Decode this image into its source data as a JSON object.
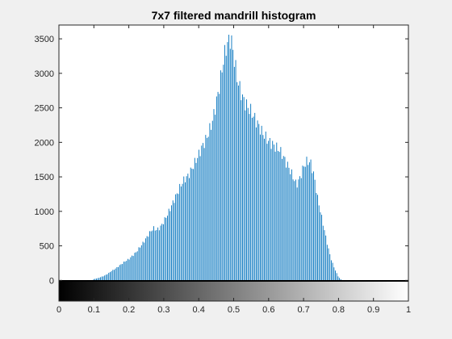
{
  "chart_data": {
    "type": "bar",
    "title": "7x7 filtered mandrill histogram",
    "xlabel": "",
    "ylabel": "",
    "xlim": [
      0,
      1
    ],
    "ylim": [
      -300,
      3700
    ],
    "x_ticks": [
      0,
      0.1,
      0.2,
      0.3,
      0.4,
      0.5,
      0.6,
      0.7,
      0.8,
      0.9,
      1
    ],
    "x_tick_labels": [
      "0",
      "0.1",
      "0.2",
      "0.3",
      "0.4",
      "0.5",
      "0.6",
      "0.7",
      "0.8",
      "0.9",
      "1"
    ],
    "y_ticks": [
      0,
      500,
      1000,
      1500,
      2000,
      2500,
      3000,
      3500
    ],
    "y_tick_labels": [
      "0",
      "500",
      "1000",
      "1500",
      "2000",
      "2500",
      "3000",
      "3500"
    ],
    "bar_color": "#0072bd",
    "colorbar": {
      "range": [
        0,
        1
      ],
      "from_color": "#000000",
      "to_color": "#ffffff"
    },
    "grid": false,
    "profile": [
      [
        0.095,
        0
      ],
      [
        0.1,
        20
      ],
      [
        0.11,
        30
      ],
      [
        0.12,
        50
      ],
      [
        0.13,
        70
      ],
      [
        0.14,
        100
      ],
      [
        0.15,
        140
      ],
      [
        0.16,
        170
      ],
      [
        0.17,
        210
      ],
      [
        0.18,
        250
      ],
      [
        0.19,
        290
      ],
      [
        0.2,
        320
      ],
      [
        0.21,
        370
      ],
      [
        0.22,
        420
      ],
      [
        0.23,
        490
      ],
      [
        0.24,
        560
      ],
      [
        0.25,
        640
      ],
      [
        0.26,
        720
      ],
      [
        0.27,
        790
      ],
      [
        0.28,
        760
      ],
      [
        0.29,
        800
      ],
      [
        0.3,
        890
      ],
      [
        0.31,
        990
      ],
      [
        0.32,
        1100
      ],
      [
        0.33,
        1220
      ],
      [
        0.34,
        1330
      ],
      [
        0.35,
        1450
      ],
      [
        0.36,
        1530
      ],
      [
        0.37,
        1580
      ],
      [
        0.38,
        1680
      ],
      [
        0.39,
        1790
      ],
      [
        0.4,
        1900
      ],
      [
        0.41,
        2020
      ],
      [
        0.42,
        2120
      ],
      [
        0.43,
        2250
      ],
      [
        0.44,
        2420
      ],
      [
        0.45,
        2680
      ],
      [
        0.46,
        2950
      ],
      [
        0.47,
        3300
      ],
      [
        0.48,
        3550
      ],
      [
        0.49,
        3650
      ],
      [
        0.495,
        3580
      ],
      [
        0.5,
        3400
      ],
      [
        0.51,
        3050
      ],
      [
        0.52,
        2850
      ],
      [
        0.53,
        2700
      ],
      [
        0.54,
        2620
      ],
      [
        0.55,
        2550
      ],
      [
        0.56,
        2450
      ],
      [
        0.57,
        2350
      ],
      [
        0.58,
        2250
      ],
      [
        0.59,
        2170
      ],
      [
        0.6,
        2100
      ],
      [
        0.61,
        2060
      ],
      [
        0.62,
        2010
      ],
      [
        0.63,
        1980
      ],
      [
        0.64,
        1890
      ],
      [
        0.65,
        1780
      ],
      [
        0.66,
        1680
      ],
      [
        0.67,
        1560
      ],
      [
        0.68,
        1440
      ],
      [
        0.69,
        1550
      ],
      [
        0.7,
        1720
      ],
      [
        0.71,
        1800
      ],
      [
        0.72,
        1780
      ],
      [
        0.73,
        1580
      ],
      [
        0.74,
        1250
      ],
      [
        0.75,
        1000
      ],
      [
        0.76,
        750
      ],
      [
        0.77,
        500
      ],
      [
        0.78,
        300
      ],
      [
        0.79,
        160
      ],
      [
        0.8,
        50
      ],
      [
        0.81,
        0
      ]
    ],
    "bins": 256
  }
}
